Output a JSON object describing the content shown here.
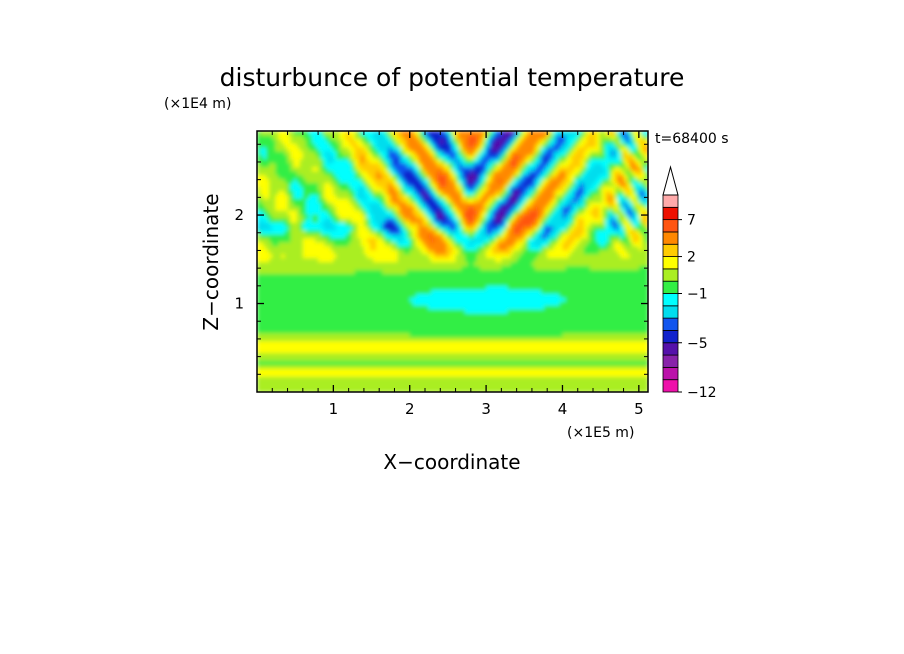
{
  "chart_data": {
    "type": "heatmap",
    "title": "disturbunce of potential temperature",
    "xlabel": "X−coordinate",
    "ylabel": "Z−coordinate",
    "x_unit": "(×1E5 m)",
    "y_unit": "(×1E4 m)",
    "time_label": "t=68400 s",
    "xlim": [
      0,
      5.12
    ],
    "ylim": [
      0,
      2.95
    ],
    "x_ticks": [
      {
        "value": 1,
        "label": "1"
      },
      {
        "value": 2,
        "label": "2"
      },
      {
        "value": 3,
        "label": "3"
      },
      {
        "value": 4,
        "label": "4"
      },
      {
        "value": 5,
        "label": "5"
      }
    ],
    "y_ticks": [
      {
        "value": 1,
        "label": "1"
      },
      {
        "value": 2,
        "label": "2"
      }
    ],
    "colorbar": {
      "levels": [
        -12,
        -11,
        -9,
        -7,
        -5,
        -4,
        -3,
        -2,
        -1,
        0,
        1,
        2,
        3,
        5,
        7,
        9,
        11
      ],
      "colors": [
        "#ee11aa",
        "#bb11aa",
        "#8822aa",
        "#5511aa",
        "#1122cc",
        "#1155ee",
        "#00ddee",
        "#00ffff",
        "#33ee44",
        "#aaee22",
        "#ffff00",
        "#ffcc00",
        "#ff8800",
        "#ff5511",
        "#ee1100",
        "#ffaaaa"
      ],
      "overflow_color": "#ffffff",
      "labels": [
        {
          "value": -12,
          "text": "−12"
        },
        {
          "value": -5,
          "text": "−5"
        },
        {
          "value": -1,
          "text": "−1"
        },
        {
          "value": 2,
          "text": "2"
        },
        {
          "value": 7,
          "text": "7"
        }
      ]
    }
  }
}
